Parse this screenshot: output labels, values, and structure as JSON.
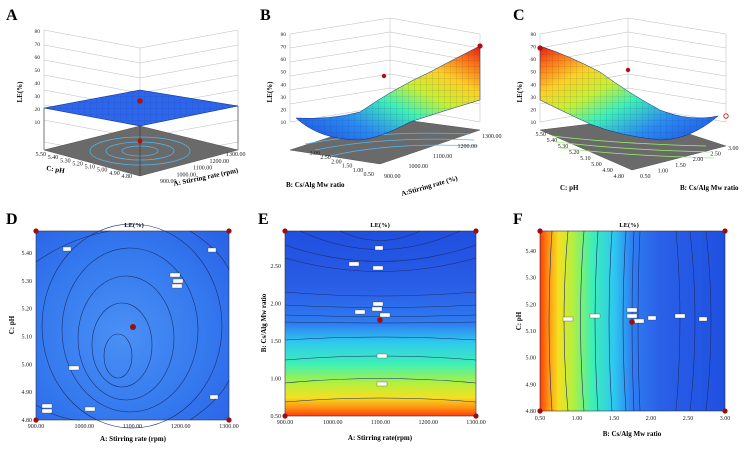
{
  "chart_data": [
    {
      "panel": "A",
      "type": "surface3d",
      "title": "",
      "zlabel": "LE(%)",
      "zticks": [
        "80",
        "70",
        "60",
        "50",
        "40",
        "30",
        "20",
        "10"
      ],
      "zlim": [
        10,
        80
      ],
      "xlabel": "A: Stirring rate (rpm)",
      "xticks": [
        "900.00",
        "1000.00",
        "1100.00",
        "1200.00",
        "1300.00"
      ],
      "ylabel": "C: pH",
      "yticks": [
        "4.80",
        "4.90",
        "5.00",
        "5.10",
        "5.20",
        "5.30",
        "5.40",
        "5.50"
      ],
      "surface_level": 21,
      "center_point": {
        "x": 1100,
        "y": 5.15,
        "z": 26
      }
    },
    {
      "panel": "B",
      "type": "surface3d",
      "title": "",
      "zlabel": "LE(%)",
      "zticks": [
        "80",
        "70",
        "60",
        "50",
        "40",
        "30",
        "20",
        "10"
      ],
      "zlim": [
        10,
        80
      ],
      "xlabel": "A:Stirring rate (%)",
      "xticks": [
        "900.00",
        "1000.00",
        "1100.00",
        "1200.00",
        "1300.00"
      ],
      "ylabel": "B: Cs/Alg Mw ratio",
      "yticks": [
        "0.50",
        "1.00",
        "1.50",
        "2.00",
        "2.50",
        "3.00"
      ],
      "max_point": {
        "x": 1300,
        "y": 0.5,
        "z": 68
      }
    },
    {
      "panel": "C",
      "type": "surface3d",
      "title": "",
      "zlabel": "LE(%)",
      "zticks": [
        "80",
        "70",
        "60",
        "50",
        "40",
        "30",
        "20",
        "10"
      ],
      "zlim": [
        10,
        80
      ],
      "xlabel": "C: pH",
      "xticks": [
        "4.80",
        "4.90",
        "5.00",
        "5.10",
        "5.20",
        "5.30",
        "5.40",
        "5.50"
      ],
      "ylabel": "B: Cs/Alg Mw ratio",
      "yticks": [
        "0.50",
        "1.00",
        "1.50",
        "2.00",
        "2.50",
        "3.00"
      ],
      "max_point": {
        "x": 5.5,
        "y": 0.5,
        "z": 66
      }
    },
    {
      "panel": "D",
      "type": "contour",
      "title": "LE(%)",
      "xlabel": "A: Stirring rate (rpm)",
      "xticks": [
        "900.00",
        "1000.00",
        "1100.00",
        "1200.00",
        "1300.00"
      ],
      "xlim": [
        900,
        1300
      ],
      "ylabel": "C: pH",
      "yticks": [
        "4.80",
        "4.90",
        "5.00",
        "5.10",
        "5.20",
        "5.30",
        "5.40"
      ],
      "ylim": [
        4.8,
        5.5
      ],
      "center_point": {
        "x": 1100,
        "y": 5.15
      }
    },
    {
      "panel": "E",
      "type": "contour",
      "title": "LE(%)",
      "xlabel": "A: Stirring rate(rpm)",
      "xticks": [
        "900.00",
        "1000.00",
        "1100.00",
        "1200.00",
        "1300.00"
      ],
      "xlim": [
        900,
        1300
      ],
      "ylabel": "B: Cs/Alg Mw ratio",
      "yticks": [
        "0.50",
        "1.00",
        "1.50",
        "2.00",
        "2.50"
      ],
      "ylim": [
        0.5,
        3.0
      ],
      "center_point": {
        "x": 1100,
        "y": 1.75
      }
    },
    {
      "panel": "F",
      "type": "contour",
      "title": "LE(%)",
      "xlabel": "B: Cs/Alg Mw ratio",
      "xticks": [
        "0.50",
        "1.00",
        "1.50",
        "2.00",
        "2.50",
        "3.00"
      ],
      "xlim": [
        0.5,
        3.0
      ],
      "ylabel": "C: pH",
      "yticks": [
        "4.80",
        "4.90",
        "5.00",
        "5.10",
        "5.20",
        "5.30",
        "5.40"
      ],
      "ylim": [
        4.8,
        5.5
      ],
      "center_point": {
        "x": 1.75,
        "y": 5.15
      }
    }
  ]
}
